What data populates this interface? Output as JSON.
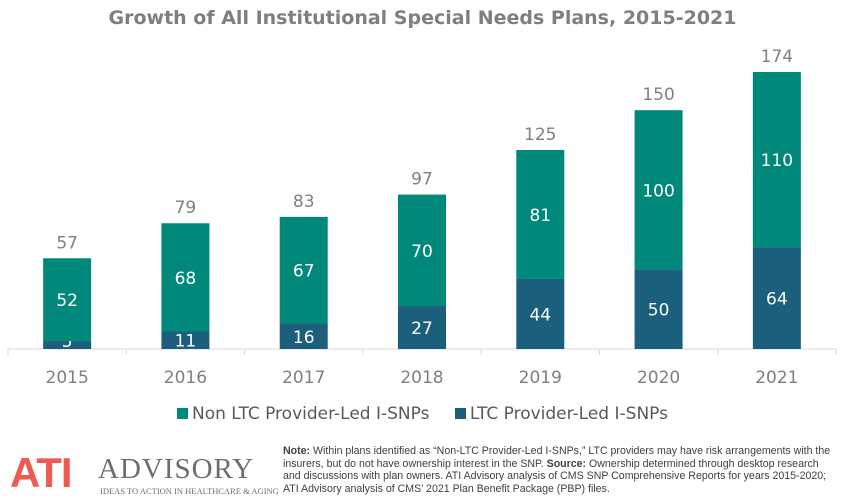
{
  "chart_data": {
    "type": "bar",
    "stacked": true,
    "title": "Growth of All Institutional Special Needs Plans, 2015-2021",
    "categories": [
      "2015",
      "2016",
      "2017",
      "2018",
      "2019",
      "2020",
      "2021"
    ],
    "series": [
      {
        "name": "LTC Provider-Led I-SNPs",
        "color": "#1b5f7c",
        "values": [
          5,
          11,
          16,
          27,
          44,
          50,
          64
        ]
      },
      {
        "name": "Non LTC Provider-Led I-SNPs",
        "color": "#00897b",
        "values": [
          52,
          68,
          67,
          70,
          81,
          100,
          110
        ]
      }
    ],
    "totals": [
      57,
      79,
      83,
      97,
      125,
      150,
      174
    ],
    "legend_order": [
      "Non LTC Provider-Led I-SNPs",
      "LTC Provider-Led I-SNPs"
    ],
    "legend_position": "bottom",
    "grid": false
  },
  "footer": {
    "logo_text": "ATI ADVISORY",
    "logo_mark": "ATI",
    "logo_word": "ADVISORY",
    "tagline": "IDEAS TO ACTION IN HEALTHCARE & AGING",
    "note_label": "Note:",
    "note_text": " Within plans identified as “Non-LTC Provider-Led I-SNPs,” LTC providers may have risk arrangements with the insurers, but do not have ownership interest in the SNP. ",
    "source_label": "Source:",
    "source_text": " Ownership determined through desktop research and discussions with plan owners. ATI Advisory analysis of CMS SNP Comprehensive Reports for years 2015-2020; ATI Advisory analysis of CMS’ 2021 Plan Benefit Package (PBP) files."
  }
}
